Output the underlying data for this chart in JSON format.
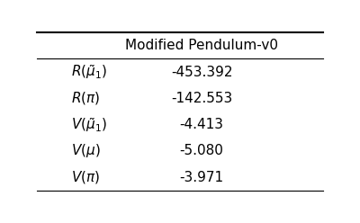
{
  "col_header": "Modified Pendulum-v0",
  "row_labels": [
    "$R(\\tilde{\\mu}_1)$",
    "$R(\\pi)$",
    "$V(\\tilde{\\mu}_1)$",
    "$V(\\mu)$",
    "$V(\\pi)$"
  ],
  "values": [
    "-453.392",
    "-142.553",
    "-4.413",
    "-5.080",
    "-3.971"
  ],
  "background_color": "#ffffff"
}
